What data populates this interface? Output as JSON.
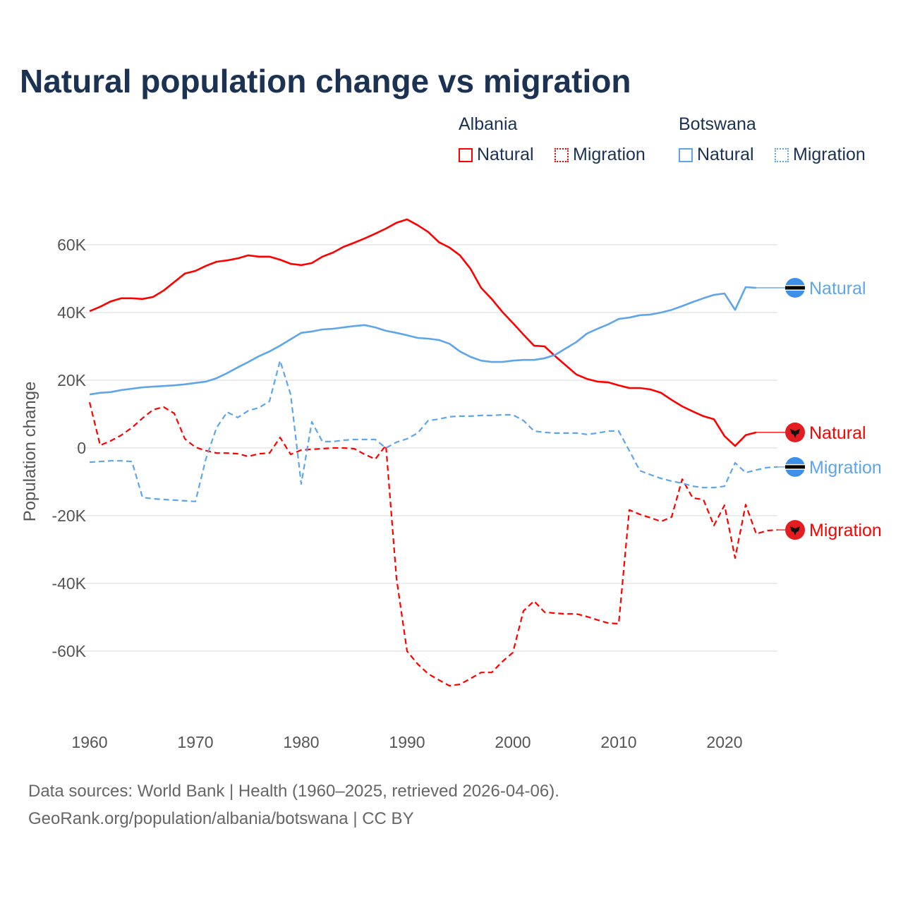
{
  "title": "Natural population change vs migration",
  "legend": {
    "groups": [
      {
        "name": "Albania",
        "items": [
          "Natural",
          "Migration"
        ],
        "color": "#ff0000"
      },
      {
        "name": "Botswana",
        "items": [
          "Natural",
          "Migration"
        ],
        "color": "#5ea5ea"
      }
    ]
  },
  "footer": {
    "line1": "Data sources: World Bank | Health (1960–2025, retrieved 2026-04-06).",
    "line2": "GeoRank.org/population/albania/botswana | CC BY"
  },
  "chart_data": {
    "type": "line",
    "ylabel": "Population change",
    "xlabel": "",
    "xlim": [
      1960,
      2025
    ],
    "ylim": [
      -80000,
      70000
    ],
    "x_ticks": [
      1960,
      1970,
      1980,
      1990,
      2000,
      2010,
      2020
    ],
    "x_tick_labels": [
      "1960",
      "1970",
      "1980",
      "1990",
      "2000",
      "2010",
      "2020"
    ],
    "y_ticks": [
      60000,
      40000,
      20000,
      0,
      -20000,
      -40000,
      -60000
    ],
    "y_tick_labels": [
      "60K",
      "40K",
      "20K",
      "0",
      "-20K",
      "-40K",
      "-60K"
    ],
    "grid": true,
    "start_year": 1960,
    "series": [
      {
        "name": "Albania Natural",
        "label": "Natural",
        "color": "#ff0000",
        "dashed": false,
        "flag": "albania-flag",
        "values": [
          40.4,
          41.7,
          43.3,
          44.2,
          44.2,
          44.0,
          44.6,
          46.5,
          49.0,
          51.5,
          52.3,
          53.8,
          55.0,
          55.4,
          56.0,
          56.9,
          56.5,
          56.5,
          55.6,
          54.4,
          54.0,
          54.6,
          56.5,
          57.7,
          59.4,
          60.6,
          61.9,
          63.3,
          64.8,
          66.5,
          67.5,
          65.8,
          63.8,
          60.8,
          59.2,
          56.9,
          52.9,
          47.3,
          44.0,
          40.2,
          36.9,
          33.5,
          30.2,
          30.0,
          27.1,
          24.4,
          21.7,
          20.4,
          19.6,
          19.4,
          18.5,
          17.7,
          17.7,
          17.3,
          16.3,
          14.2,
          12.3,
          10.8,
          9.4,
          8.5,
          3.5,
          0.6,
          3.8,
          4.6
        ]
      },
      {
        "name": "Albania Migration",
        "label": "Migration",
        "color": "#ff0000",
        "dashed": true,
        "flag": "albania-flag",
        "values": [
          13.5,
          0.8,
          2.1,
          3.8,
          6.0,
          8.8,
          11.3,
          12.1,
          10.2,
          2.7,
          0.2,
          -0.8,
          -1.5,
          -1.5,
          -1.7,
          -2.5,
          -1.7,
          -1.5,
          3.1,
          -1.9,
          -0.6,
          -0.4,
          -0.2,
          0,
          0,
          -0.2,
          -1.9,
          -3.3,
          0.8,
          -38.5,
          -60.0,
          -63.8,
          -66.7,
          -68.5,
          -70.2,
          -69.8,
          -68.1,
          -66.3,
          -66.3,
          -63.1,
          -60.4,
          -48.1,
          -45.2,
          -48.5,
          -48.8,
          -49.0,
          -49.0,
          -49.8,
          -50.8,
          -51.7,
          -51.9,
          -18.3,
          -19.6,
          -20.6,
          -21.7,
          -20.4,
          -9.2,
          -14.8,
          -15.2,
          -22.9,
          -16.9,
          -32.5,
          -16.7,
          -25.4,
          -24.4,
          -24.2
        ]
      },
      {
        "name": "Botswana Natural",
        "label": "Natural",
        "color": "#5ea5ea",
        "dashed": false,
        "flag": "botswana-flag",
        "values": [
          15.8,
          16.3,
          16.5,
          17.1,
          17.5,
          17.9,
          18.1,
          18.3,
          18.5,
          18.8,
          19.2,
          19.6,
          20.6,
          22.1,
          23.8,
          25.4,
          27.1,
          28.5,
          30.2,
          32.1,
          34.0,
          34.4,
          35.0,
          35.2,
          35.6,
          36.0,
          36.3,
          35.6,
          34.6,
          34.0,
          33.3,
          32.5,
          32.3,
          31.9,
          30.8,
          28.5,
          26.9,
          25.8,
          25.4,
          25.4,
          25.8,
          26.0,
          26.0,
          26.5,
          27.5,
          29.4,
          31.3,
          33.8,
          35.2,
          36.5,
          38.1,
          38.5,
          39.2,
          39.4,
          40.0,
          40.8,
          41.9,
          43.1,
          44.2,
          45.2,
          45.6,
          40.8,
          47.5,
          47.3
        ]
      },
      {
        "name": "Botswana Migration",
        "label": "Migration",
        "color": "#5ea5ea",
        "dashed": true,
        "flag": "botswana-flag",
        "values": [
          -4.2,
          -4.0,
          -3.8,
          -3.8,
          -4.0,
          -14.6,
          -15.0,
          -15.2,
          -15.4,
          -15.6,
          -15.8,
          -3.1,
          6.0,
          10.6,
          9.0,
          11.0,
          11.9,
          13.8,
          25.8,
          15.8,
          -10.6,
          7.7,
          1.9,
          1.9,
          2.3,
          2.5,
          2.5,
          2.5,
          0,
          1.7,
          2.7,
          4.4,
          8.1,
          8.5,
          9.2,
          9.4,
          9.4,
          9.6,
          9.6,
          9.8,
          9.8,
          8.1,
          5.0,
          4.6,
          4.4,
          4.4,
          4.4,
          4.0,
          4.4,
          5.0,
          5.0,
          -0.8,
          -6.7,
          -7.9,
          -9.0,
          -9.8,
          -10.4,
          -11.3,
          -11.7,
          -11.7,
          -11.3,
          -4.4,
          -7.3,
          -6.5,
          -5.8,
          -5.6
        ]
      }
    ],
    "value_unit": "thousands"
  }
}
